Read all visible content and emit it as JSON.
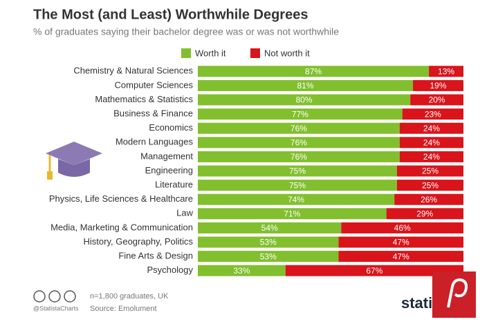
{
  "chart_data": {
    "type": "stacked-bar",
    "title": "The Most (and Least) Worthwhile Degrees",
    "subtitle": "% of graduates saying their bachelor degree was or was not worthwhile",
    "categories": [
      "Chemistry & Natural Sciences",
      "Computer Sciences",
      "Mathematics & Statistics",
      "Business & Finance",
      "Economics",
      "Modern Languages",
      "Management",
      "Engineering",
      "Literature",
      "Physics, Life Sciences & Healthcare",
      "Law",
      "Media, Marketing & Communication",
      "History, Geography, Politics",
      "Fine Arts & Design",
      "Psychology"
    ],
    "series": [
      {
        "name": "Worth it",
        "color": "#82bf2e",
        "values": [
          87,
          81,
          80,
          77,
          76,
          76,
          76,
          75,
          75,
          74,
          71,
          54,
          53,
          53,
          33
        ],
        "value_labels": [
          "87%",
          "81%",
          "80%",
          "77%",
          "76%",
          "76%",
          "76%",
          "75%",
          "75%",
          "74%",
          "71%",
          "54%",
          "53%",
          "53%",
          "33%"
        ]
      },
      {
        "name": "Not worth it",
        "color": "#d9141b",
        "values": [
          13,
          19,
          20,
          23,
          24,
          24,
          24,
          25,
          25,
          26,
          29,
          46,
          47,
          47,
          67
        ],
        "value_labels": [
          "13%",
          "19%",
          "20%",
          "23%",
          "24%",
          "24%",
          "24%",
          "25%",
          "25%",
          "26%",
          "29%",
          "46%",
          "47%",
          "47%",
          "67%"
        ]
      }
    ],
    "credit": "@StatistaCharts",
    "note": "n=1,800 graduates, UK",
    "source": "Source: Emolument",
    "logo": "statista"
  }
}
